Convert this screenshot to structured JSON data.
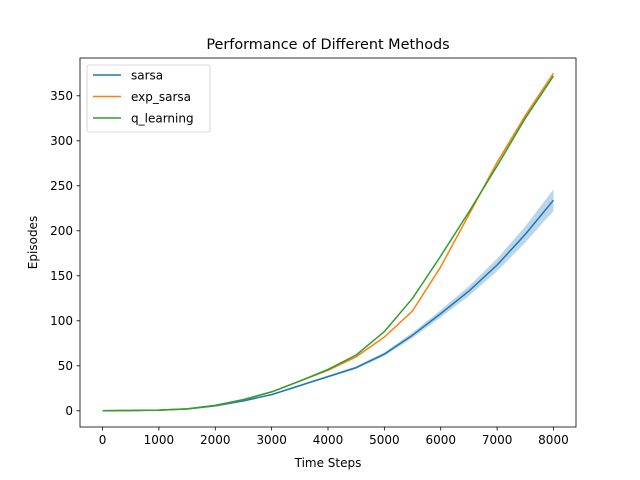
{
  "chart_data": {
    "type": "line",
    "title": "Performance of Different Methods",
    "xlabel": "Time Steps",
    "ylabel": "Episodes",
    "xlim": [
      -400,
      8400
    ],
    "ylim": [
      -18,
      392
    ],
    "xticks": [
      0,
      1000,
      2000,
      3000,
      4000,
      5000,
      6000,
      7000,
      8000
    ],
    "yticks": [
      0,
      50,
      100,
      150,
      200,
      250,
      300,
      350
    ],
    "grid": false,
    "legend_position": "top-left",
    "series": [
      {
        "name": "sarsa",
        "color": "#1f77b4",
        "x": [
          0,
          500,
          1000,
          1500,
          2000,
          2500,
          3000,
          3500,
          4000,
          4500,
          5000,
          5500,
          6000,
          6500,
          7000,
          7500,
          8000
        ],
        "y": [
          0,
          0.3,
          0.8,
          2,
          5.5,
          11,
          18,
          28,
          38,
          48,
          63,
          84,
          108,
          133,
          162,
          196,
          234
        ],
        "y_low": [
          0,
          0.3,
          0.8,
          1.9,
          5.3,
          10.5,
          17.3,
          27,
          36.8,
          46.5,
          61,
          81,
          104,
          127.5,
          155,
          187,
          222
        ],
        "y_high": [
          0,
          0.3,
          0.8,
          2.1,
          5.7,
          11.5,
          18.7,
          29,
          39.2,
          49.5,
          65,
          87,
          112,
          138.5,
          169,
          205,
          246
        ]
      },
      {
        "name": "exp_sarsa",
        "color": "#ff7f0e",
        "x": [
          0,
          500,
          1000,
          1500,
          2000,
          2500,
          3000,
          3500,
          4000,
          4500,
          5000,
          5500,
          6000,
          6500,
          7000,
          7500,
          8000
        ],
        "y": [
          0,
          0.3,
          0.8,
          2.1,
          6,
          12.5,
          21,
          33,
          45,
          60,
          82,
          111,
          160,
          218,
          276,
          328,
          375
        ]
      },
      {
        "name": "q_learning",
        "color": "#2ca02c",
        "x": [
          0,
          500,
          1000,
          1500,
          2000,
          2500,
          3000,
          3500,
          4000,
          4500,
          5000,
          5500,
          6000,
          6500,
          7000,
          7500,
          8000
        ],
        "y": [
          0,
          0.3,
          0.8,
          2.1,
          6,
          12.5,
          21,
          33,
          46,
          62,
          88,
          125,
          172,
          221,
          272,
          325,
          372
        ]
      }
    ]
  }
}
